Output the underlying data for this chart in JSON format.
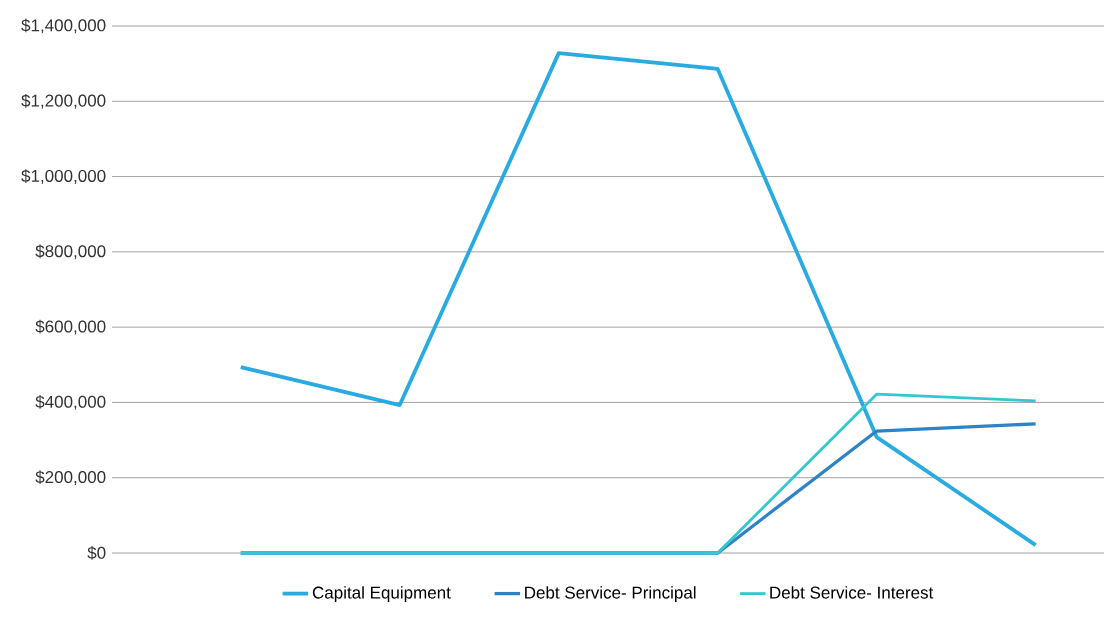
{
  "chart_data": {
    "type": "line",
    "categories": [
      null,
      null,
      null,
      null,
      null,
      null
    ],
    "series": [
      {
        "name": "Capital Equipment",
        "color": "#29abe2",
        "values": [
          494000,
          393000,
          1328000,
          1286000,
          308000,
          21000
        ]
      },
      {
        "name": "Debt Service- Principal",
        "color": "#2e83c6",
        "values": [
          0,
          0,
          0,
          0,
          324000,
          343000
        ]
      },
      {
        "name": "Debt Service- Interest",
        "color": "#33c7d0",
        "values": [
          0,
          0,
          0,
          0,
          422000,
          404000
        ]
      }
    ],
    "ylim": [
      0,
      1400000
    ],
    "yticks": [
      {
        "value": 0,
        "label": "$0"
      },
      {
        "value": 200000,
        "label": "$200,000"
      },
      {
        "value": 400000,
        "label": "$400,000"
      },
      {
        "value": 600000,
        "label": "$600,000"
      },
      {
        "value": 800000,
        "label": "$800,000"
      },
      {
        "value": 1000000,
        "label": "$1,000,000"
      },
      {
        "value": 1200000,
        "label": "$1,200,000"
      },
      {
        "value": 1400000,
        "label": "$1,400,000"
      }
    ],
    "grid": "y",
    "legend": "bottom",
    "marker": "none",
    "line_style": "solid"
  }
}
